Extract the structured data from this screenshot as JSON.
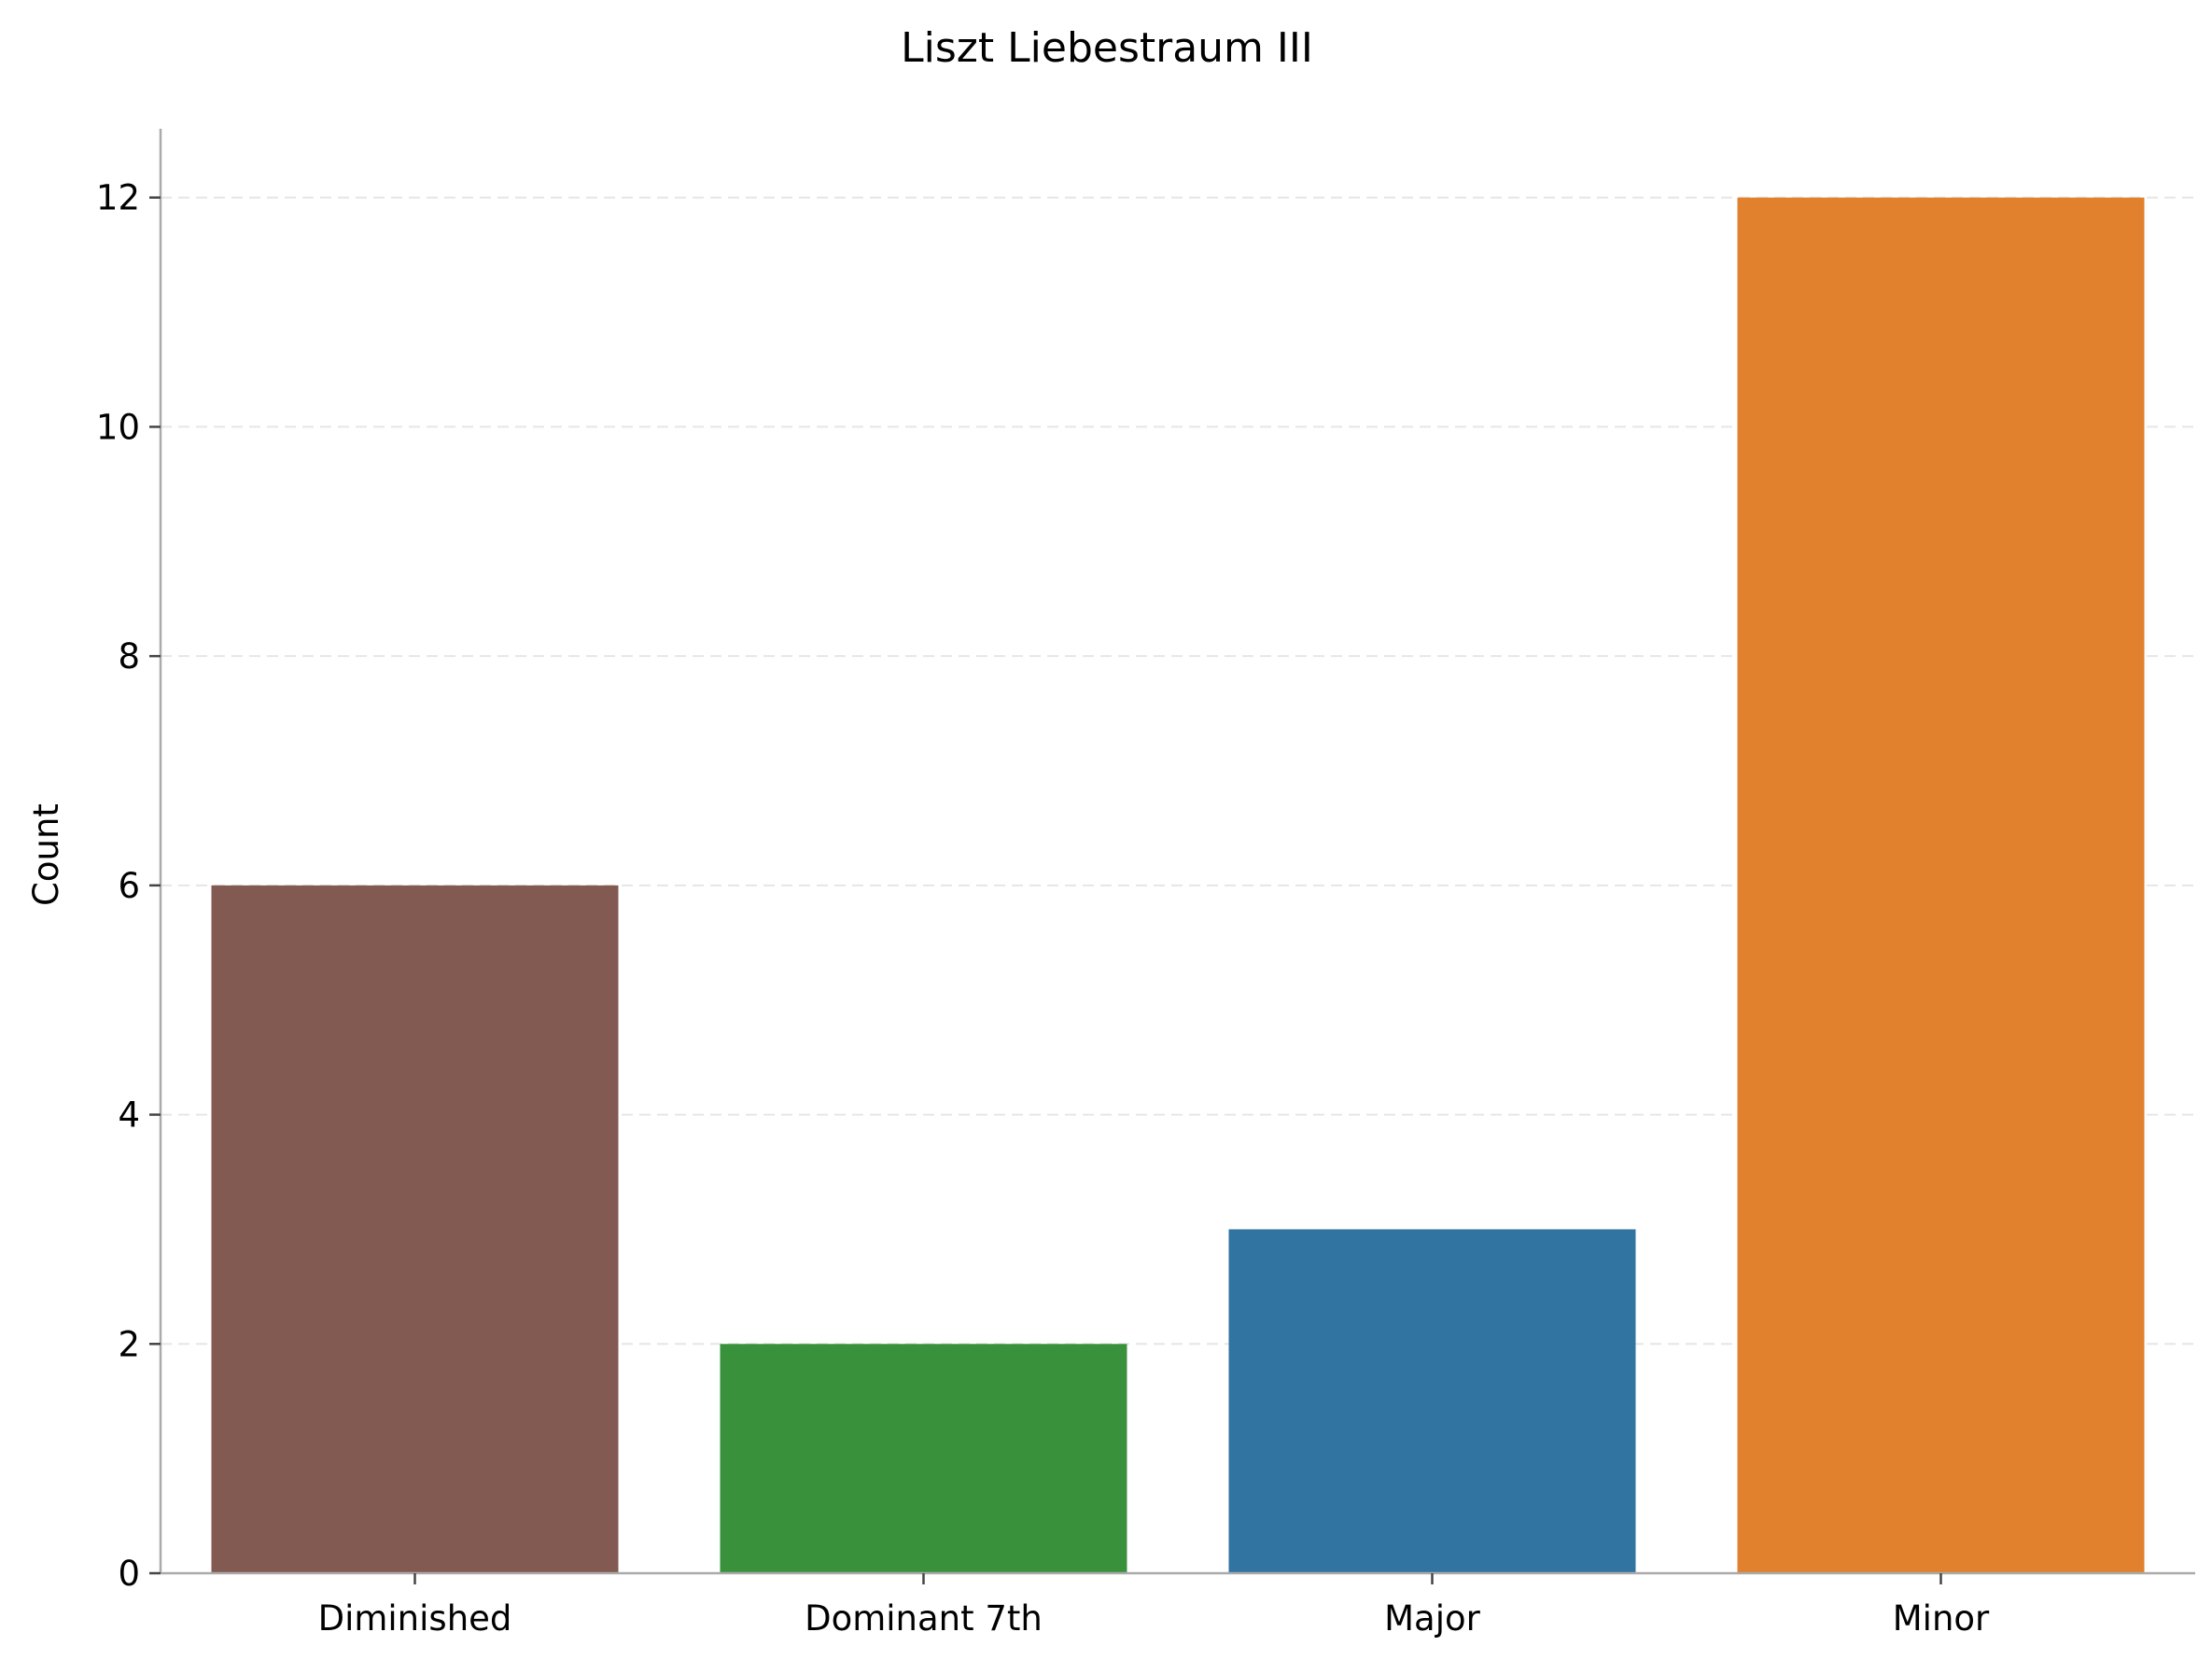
{
  "chart_data": {
    "type": "bar",
    "title": "Liszt Liebestraum III",
    "xlabel": "",
    "ylabel": "Count",
    "categories": [
      "Diminished",
      "Dominant 7th",
      "Major",
      "Minor"
    ],
    "values": [
      6,
      2,
      3,
      12
    ],
    "colors": [
      "#825a52",
      "#3a913c",
      "#3274a1",
      "#e1812d"
    ],
    "ylim": [
      0,
      12.6
    ],
    "yticks": [
      0,
      2,
      4,
      6,
      8,
      10,
      12
    ],
    "grid": "y-dashed",
    "legend": "none"
  }
}
